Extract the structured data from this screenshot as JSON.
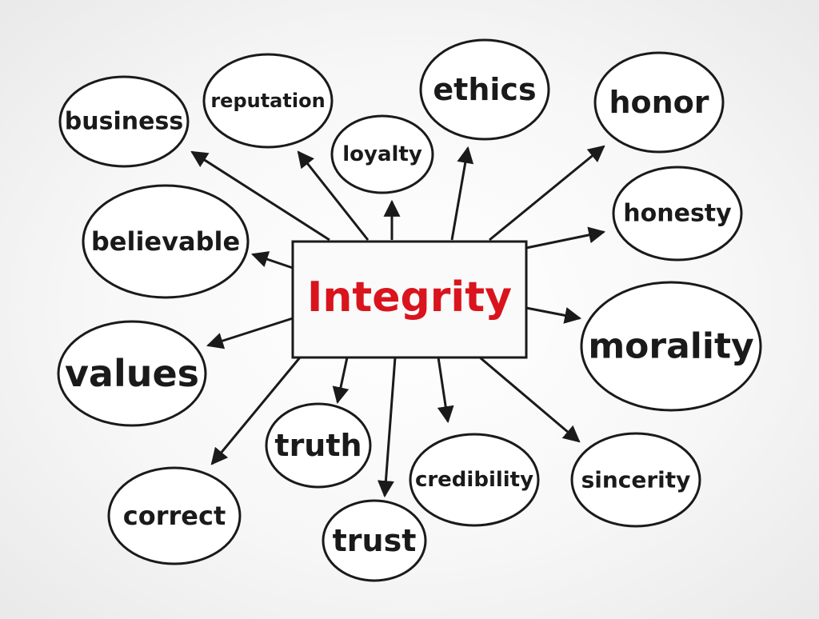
{
  "center": {
    "label": "Integrity",
    "color": "#d9141d"
  },
  "ink_color": "#1a1a1a",
  "bubbles": [
    {
      "id": "business",
      "label": "business"
    },
    {
      "id": "reputation",
      "label": "reputation"
    },
    {
      "id": "loyalty",
      "label": "loyalty"
    },
    {
      "id": "ethics",
      "label": "ethics"
    },
    {
      "id": "honor",
      "label": "honor"
    },
    {
      "id": "honesty",
      "label": "honesty"
    },
    {
      "id": "believable",
      "label": "believable"
    },
    {
      "id": "morality",
      "label": "morality"
    },
    {
      "id": "values",
      "label": "values"
    },
    {
      "id": "truth",
      "label": "truth"
    },
    {
      "id": "credibility",
      "label": "credibility"
    },
    {
      "id": "sincerity",
      "label": "sincerity"
    },
    {
      "id": "correct",
      "label": "correct"
    },
    {
      "id": "trust",
      "label": "trust"
    }
  ]
}
